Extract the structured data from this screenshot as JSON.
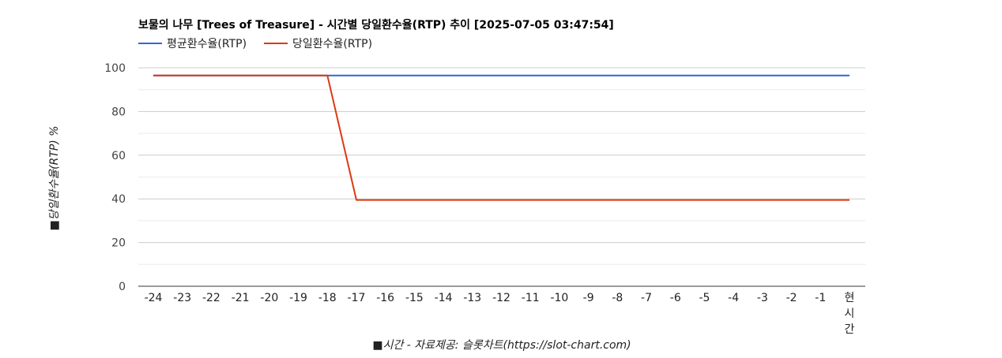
{
  "chart_data": {
    "type": "line",
    "title": "보물의 나무 [Trees of Treasure] - 시간별 당일환수율(RTP) 추이 [2025-07-05 03:47:54]",
    "xlabel": "■시간 - 자료제공: 슬롯차트(https://slot-chart.com)",
    "ylabel": "■당일환수율(RTP) %",
    "categories": [
      "-24",
      "-23",
      "-22",
      "-21",
      "-20",
      "-19",
      "-18",
      "-17",
      "-16",
      "-15",
      "-14",
      "-13",
      "-12",
      "-11",
      "-10",
      "-9",
      "-8",
      "-7",
      "-6",
      "-5",
      "-4",
      "-3",
      "-2",
      "-1",
      "현시간"
    ],
    "ylim": [
      0,
      100
    ],
    "yticks": [
      0,
      20,
      40,
      60,
      80,
      100
    ],
    "grid": true,
    "legend": "top-left",
    "series": [
      {
        "name": "평균환수율(RTP)",
        "color": "#3366cc",
        "values": [
          96.5,
          96.5,
          96.5,
          96.5,
          96.5,
          96.5,
          96.5,
          96.5,
          96.5,
          96.5,
          96.5,
          96.5,
          96.5,
          96.5,
          96.5,
          96.5,
          96.5,
          96.5,
          96.5,
          96.5,
          96.5,
          96.5,
          96.5,
          96.5,
          96.5
        ]
      },
      {
        "name": "당일환수율(RTP)",
        "color": "#dc3912",
        "values": [
          96.5,
          96.5,
          96.5,
          96.5,
          96.5,
          96.5,
          96.5,
          39.5,
          39.5,
          39.5,
          39.5,
          39.5,
          39.5,
          39.5,
          39.5,
          39.5,
          39.5,
          39.5,
          39.5,
          39.5,
          39.5,
          39.5,
          39.5,
          39.5,
          39.5
        ]
      }
    ]
  }
}
